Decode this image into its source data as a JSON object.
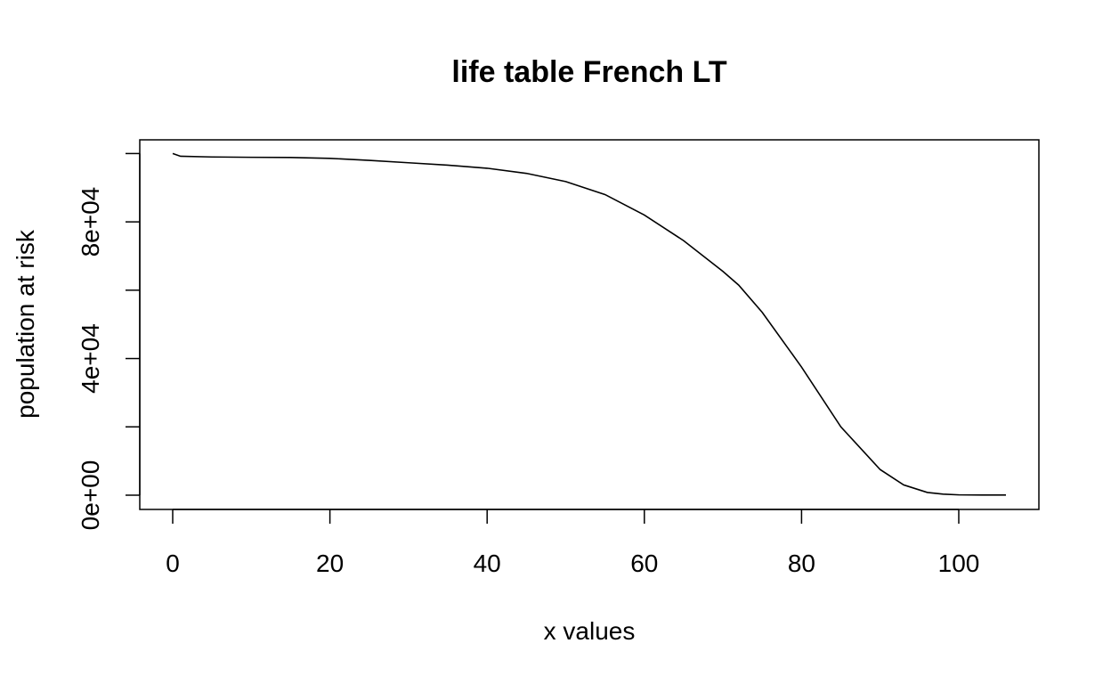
{
  "chart_data": {
    "type": "line",
    "title": "life table French LT",
    "xlabel": "x values",
    "ylabel": "population at risk",
    "xlim": [
      0,
      106
    ],
    "ylim": [
      0,
      100000
    ],
    "x_ticks": [
      0,
      20,
      40,
      60,
      80,
      100
    ],
    "x_tick_labels": [
      "0",
      "20",
      "40",
      "60",
      "80",
      "100"
    ],
    "y_ticks": [
      0,
      20000,
      40000,
      60000,
      80000,
      100000
    ],
    "y_tick_labels": [
      "0e+00",
      "",
      "4e+04",
      "",
      "8e+04",
      ""
    ],
    "grid": false,
    "series": [
      {
        "name": "population at risk",
        "x": [
          0,
          1,
          5,
          10,
          15,
          20,
          25,
          30,
          35,
          40,
          45,
          50,
          55,
          60,
          65,
          70,
          72,
          75,
          80,
          85,
          90,
          93,
          96,
          98,
          100,
          103,
          106
        ],
        "y": [
          100000,
          99200,
          99000,
          98900,
          98850,
          98600,
          98000,
          97300,
          96600,
          95700,
          94200,
          91800,
          88000,
          82000,
          74500,
          65500,
          61500,
          53500,
          37500,
          20000,
          7500,
          3000,
          800,
          300,
          100,
          50,
          50
        ]
      }
    ]
  }
}
